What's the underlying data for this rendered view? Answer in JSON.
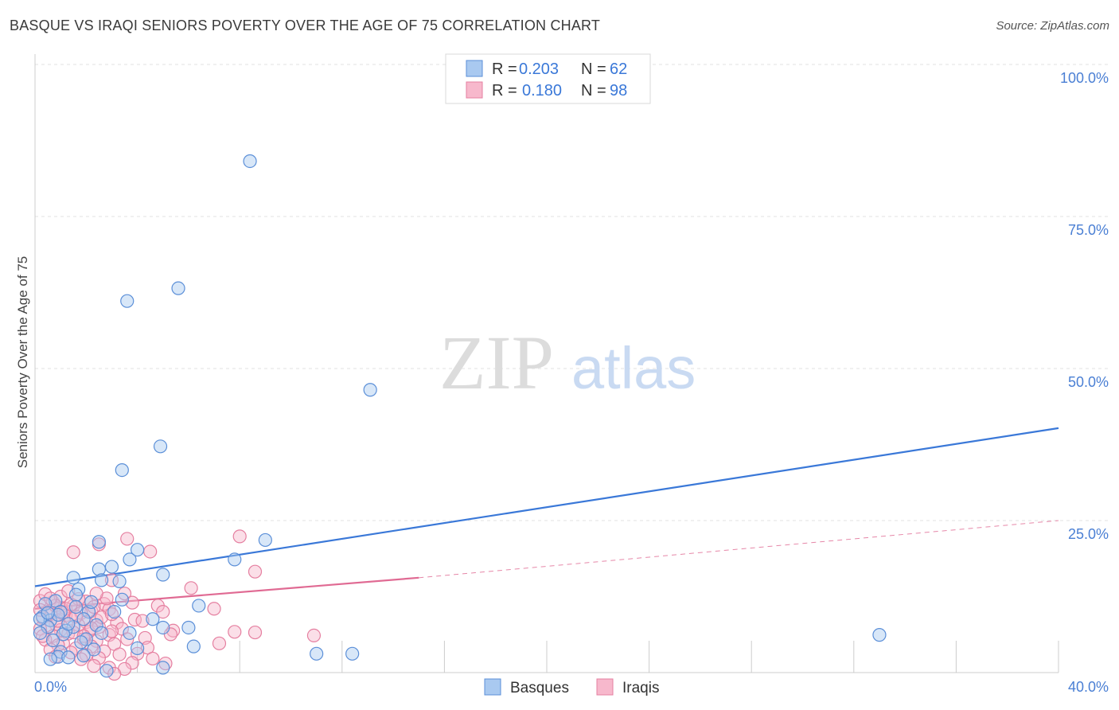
{
  "header": {
    "title": "BASQUE VS IRAQI SENIORS POVERTY OVER THE AGE OF 75 CORRELATION CHART",
    "source": "Source: ZipAtlas.com"
  },
  "watermark": {
    "zip": "ZIP",
    "atlas": "atlas"
  },
  "legend": {
    "rows": [
      {
        "r_label": "R = ",
        "r_value": "0.203",
        "n_label": "N = ",
        "n_value": "62"
      },
      {
        "r_label": "R = ",
        "r_value": "0.180",
        "n_label": "N = ",
        "n_value": "98"
      }
    ]
  },
  "colors": {
    "basques_fill": "#a9c9f0",
    "basques_stroke": "#5b8fd8",
    "basques_line": "#3a78d8",
    "iraqis_fill": "#f7b8cc",
    "iraqis_stroke": "#e57fa0",
    "iraqis_line": "#e06a93"
  },
  "chart_data": {
    "type": "scatter",
    "title": "BASQUE VS IRAQI SENIORS POVERTY OVER THE AGE OF 75 CORRELATION CHART",
    "xlabel": "",
    "ylabel": "Seniors Poverty Over the Age of 75",
    "xlim": [
      0,
      40
    ],
    "ylim": [
      0,
      100
    ],
    "x_tick_labels": [
      "0.0%",
      "40.0%"
    ],
    "y_tick_labels": [
      "100.0%",
      "75.0%",
      "50.0%",
      "25.0%"
    ],
    "y_ticks": [
      100,
      75,
      50,
      25
    ],
    "grid": true,
    "series": [
      {
        "name": "Basques",
        "r": 0.203,
        "n": 62,
        "trend": {
          "x": [
            0,
            40
          ],
          "y": [
            14.2,
            40.2
          ]
        },
        "points": [
          [
            8.4,
            84.1
          ],
          [
            3.6,
            61.1
          ],
          [
            5.6,
            63.2
          ],
          [
            13.1,
            46.5
          ],
          [
            4.9,
            37.2
          ],
          [
            3.4,
            33.3
          ],
          [
            2.5,
            21.5
          ],
          [
            9.0,
            21.8
          ],
          [
            4.0,
            20.2
          ],
          [
            3.7,
            18.6
          ],
          [
            7.8,
            18.6
          ],
          [
            2.5,
            17.0
          ],
          [
            3.0,
            17.4
          ],
          [
            5.0,
            16.1
          ],
          [
            1.5,
            15.6
          ],
          [
            2.6,
            15.2
          ],
          [
            3.3,
            15.0
          ],
          [
            1.7,
            13.7
          ],
          [
            1.6,
            12.8
          ],
          [
            3.4,
            12.0
          ],
          [
            0.8,
            11.8
          ],
          [
            6.4,
            11.0
          ],
          [
            0.4,
            11.3
          ],
          [
            1.0,
            10.0
          ],
          [
            2.1,
            10.0
          ],
          [
            0.3,
            9.2
          ],
          [
            0.6,
            8.6
          ],
          [
            1.9,
            8.8
          ],
          [
            2.4,
            7.8
          ],
          [
            0.5,
            7.5
          ],
          [
            1.5,
            7.5
          ],
          [
            5.0,
            7.4
          ],
          [
            6.0,
            7.4
          ],
          [
            0.2,
            6.5
          ],
          [
            1.2,
            6.9
          ],
          [
            2.6,
            6.5
          ],
          [
            3.7,
            6.5
          ],
          [
            1.1,
            6.3
          ],
          [
            0.7,
            5.3
          ],
          [
            2.0,
            5.5
          ],
          [
            33.0,
            6.2
          ],
          [
            1.8,
            5.0
          ],
          [
            6.2,
            4.3
          ],
          [
            4.0,
            4.0
          ],
          [
            2.3,
            3.8
          ],
          [
            1.0,
            3.4
          ],
          [
            0.9,
            2.6
          ],
          [
            1.3,
            2.5
          ],
          [
            1.9,
            2.8
          ],
          [
            11.0,
            3.1
          ],
          [
            12.4,
            3.1
          ],
          [
            0.6,
            2.2
          ],
          [
            5.0,
            0.8
          ],
          [
            2.8,
            0.3
          ],
          [
            1.6,
            10.8
          ],
          [
            0.9,
            9.5
          ],
          [
            0.2,
            8.8
          ],
          [
            3.1,
            10.0
          ],
          [
            1.3,
            8.0
          ],
          [
            0.5,
            9.8
          ],
          [
            2.2,
            11.6
          ],
          [
            4.6,
            8.8
          ]
        ]
      },
      {
        "name": "Iraqis",
        "r": 0.18,
        "n": 98,
        "trend": {
          "x": [
            0,
            15
          ],
          "y": [
            10.5,
            15.6
          ],
          "dashed_to": {
            "x": 40,
            "y": 25.0
          }
        },
        "points": [
          [
            3.6,
            22.0
          ],
          [
            8.0,
            22.4
          ],
          [
            2.5,
            21.1
          ],
          [
            1.5,
            19.8
          ],
          [
            4.5,
            19.9
          ],
          [
            8.6,
            16.6
          ],
          [
            3.0,
            15.2
          ],
          [
            6.1,
            13.9
          ],
          [
            3.5,
            13.0
          ],
          [
            4.8,
            11.0
          ],
          [
            1.0,
            10.7
          ],
          [
            2.7,
            11.3
          ],
          [
            7.0,
            10.5
          ],
          [
            0.2,
            11.8
          ],
          [
            1.5,
            11.0
          ],
          [
            5.0,
            10.0
          ],
          [
            2.2,
            10.1
          ],
          [
            1.8,
            9.8
          ],
          [
            2.9,
            10.4
          ],
          [
            0.6,
            9.6
          ],
          [
            1.2,
            9.4
          ],
          [
            3.9,
            8.7
          ],
          [
            1.4,
            8.9
          ],
          [
            2.4,
            8.6
          ],
          [
            0.3,
            9.0
          ],
          [
            2.0,
            8.3
          ],
          [
            3.2,
            8.2
          ],
          [
            0.8,
            8.0
          ],
          [
            1.7,
            7.8
          ],
          [
            4.2,
            8.5
          ],
          [
            2.5,
            7.5
          ],
          [
            0.5,
            7.4
          ],
          [
            3.4,
            7.2
          ],
          [
            1.0,
            7.0
          ],
          [
            5.4,
            6.9
          ],
          [
            0.2,
            7.2
          ],
          [
            2.1,
            6.7
          ],
          [
            7.8,
            6.7
          ],
          [
            8.6,
            6.6
          ],
          [
            10.9,
            6.1
          ],
          [
            1.3,
            6.4
          ],
          [
            2.9,
            6.2
          ],
          [
            0.7,
            6.0
          ],
          [
            4.3,
            5.7
          ],
          [
            1.9,
            5.5
          ],
          [
            3.6,
            5.5
          ],
          [
            0.4,
            5.4
          ],
          [
            2.4,
            5.2
          ],
          [
            5.3,
            6.3
          ],
          [
            1.1,
            4.8
          ],
          [
            3.1,
            4.7
          ],
          [
            0.9,
            4.5
          ],
          [
            7.2,
            4.8
          ],
          [
            2.2,
            4.3
          ],
          [
            4.4,
            4.1
          ],
          [
            1.6,
            4.0
          ],
          [
            0.6,
            3.8
          ],
          [
            2.7,
            3.5
          ],
          [
            1.4,
            3.3
          ],
          [
            3.3,
            3.0
          ],
          [
            2.0,
            2.9
          ],
          [
            4.0,
            3.1
          ],
          [
            0.8,
            2.6
          ],
          [
            2.5,
            2.4
          ],
          [
            4.6,
            2.3
          ],
          [
            1.8,
            2.2
          ],
          [
            3.8,
            1.6
          ],
          [
            2.3,
            1.1
          ],
          [
            2.9,
            0.8
          ],
          [
            3.5,
            0.6
          ],
          [
            5.1,
            1.5
          ],
          [
            3.1,
            -0.2
          ],
          [
            1.2,
            10.5
          ],
          [
            0.5,
            10.0
          ],
          [
            1.6,
            9.2
          ],
          [
            2.6,
            9.1
          ],
          [
            0.9,
            8.5
          ],
          [
            2.2,
            7.3
          ],
          [
            1.5,
            6.6
          ],
          [
            0.3,
            6.0
          ],
          [
            3.0,
            6.8
          ],
          [
            1.9,
            6.0
          ],
          [
            0.7,
            11.6
          ],
          [
            1.0,
            12.5
          ],
          [
            2.8,
            12.2
          ],
          [
            0.4,
            12.9
          ],
          [
            1.3,
            13.4
          ],
          [
            2.0,
            11.7
          ],
          [
            3.8,
            11.5
          ],
          [
            0.8,
            11.0
          ],
          [
            1.7,
            12.1
          ],
          [
            2.4,
            13.0
          ],
          [
            0.2,
            10.3
          ],
          [
            1.1,
            9.9
          ],
          [
            2.3,
            10.8
          ],
          [
            3.0,
            9.6
          ],
          [
            1.4,
            11.2
          ],
          [
            0.6,
            12.2
          ]
        ]
      }
    ]
  }
}
